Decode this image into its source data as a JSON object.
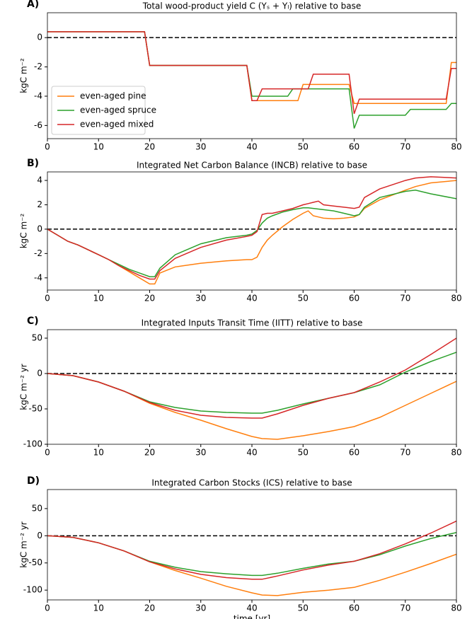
{
  "chart_data": [
    {
      "type": "line",
      "label": "A)",
      "title": "Total wood-product yield C (Yₛ + Yₗ) relative to base",
      "ylabel": "kgC m⁻²",
      "xlim": [
        0,
        80
      ],
      "xticks": [
        0,
        10,
        20,
        30,
        40,
        50,
        60,
        70,
        80
      ],
      "ylim": [
        -6.9,
        1.7
      ],
      "yticks": [
        -6,
        -4,
        -2,
        0
      ],
      "hline": 0,
      "legend": "lower left",
      "series": [
        {
          "name": "even-aged pine",
          "color": "#ff7f0e",
          "x": [
            0,
            19,
            20,
            39,
            40,
            49,
            50,
            59,
            60,
            78,
            79,
            80
          ],
          "values": [
            0.4,
            0.4,
            -1.9,
            -1.9,
            -4.3,
            -4.3,
            -3.2,
            -3.2,
            -4.5,
            -4.5,
            -1.7,
            -1.7
          ]
        },
        {
          "name": "even-aged spruce",
          "color": "#2ca02c",
          "x": [
            0,
            19,
            20,
            39,
            40,
            47,
            48,
            59,
            60,
            61,
            70,
            71,
            78,
            79,
            80
          ],
          "values": [
            0.4,
            0.4,
            -1.9,
            -1.9,
            -4.0,
            -4.0,
            -3.5,
            -3.5,
            -6.2,
            -5.3,
            -5.3,
            -4.9,
            -4.9,
            -4.5,
            -4.5
          ]
        },
        {
          "name": "even-aged mixed",
          "color": "#d62728",
          "x": [
            0,
            19,
            20,
            39,
            40,
            41,
            42,
            51,
            52,
            59,
            60,
            61,
            78,
            79,
            80
          ],
          "values": [
            0.4,
            0.4,
            -1.9,
            -1.9,
            -4.3,
            -4.3,
            -3.5,
            -3.5,
            -2.5,
            -2.5,
            -5.2,
            -4.2,
            -4.2,
            -2.1,
            -2.1
          ]
        }
      ]
    },
    {
      "type": "line",
      "label": "B)",
      "title": "Integrated Net Carbon Balance (INCB) relative to base",
      "ylabel": "kgC m⁻²",
      "xlim": [
        0,
        80
      ],
      "xticks": [
        0,
        10,
        20,
        30,
        40,
        50,
        60,
        70,
        80
      ],
      "ylim": [
        -5,
        4.7
      ],
      "yticks": [
        -4,
        -2,
        0,
        2,
        4
      ],
      "hline": 0,
      "x": [
        0,
        2,
        4,
        6,
        8,
        10,
        12,
        14,
        16,
        18,
        20,
        21,
        22,
        25,
        30,
        35,
        39,
        40,
        41,
        42,
        43,
        44,
        46,
        48,
        50,
        51,
        52,
        53,
        54,
        56,
        58,
        60,
        61,
        62,
        65,
        70,
        72,
        75,
        80
      ],
      "series": [
        {
          "color": "#ff7f0e",
          "values": [
            0,
            -0.5,
            -1.0,
            -1.3,
            -1.7,
            -2.1,
            -2.5,
            -3.0,
            -3.5,
            -4.0,
            -4.5,
            -4.5,
            -3.6,
            -3.1,
            -2.8,
            -2.6,
            -2.5,
            -2.5,
            -2.3,
            -1.5,
            -0.9,
            -0.5,
            0.2,
            0.8,
            1.3,
            1.5,
            1.1,
            1.0,
            0.9,
            0.85,
            0.9,
            1.0,
            1.2,
            1.7,
            2.4,
            3.2,
            3.5,
            3.8,
            4.0
          ]
        },
        {
          "color": "#2ca02c",
          "values": [
            0,
            -0.5,
            -1.0,
            -1.3,
            -1.7,
            -2.1,
            -2.5,
            -2.9,
            -3.3,
            -3.6,
            -3.9,
            -3.9,
            -3.2,
            -2.1,
            -1.2,
            -0.7,
            -0.5,
            -0.4,
            -0.1,
            0.5,
            0.9,
            1.1,
            1.4,
            1.6,
            1.75,
            1.75,
            1.7,
            1.65,
            1.6,
            1.5,
            1.3,
            1.1,
            1.2,
            1.8,
            2.6,
            3.1,
            3.2,
            2.9,
            2.5
          ]
        },
        {
          "color": "#d62728",
          "values": [
            0,
            -0.5,
            -1.0,
            -1.3,
            -1.7,
            -2.1,
            -2.5,
            -3.0,
            -3.4,
            -3.8,
            -4.1,
            -4.1,
            -3.4,
            -2.4,
            -1.5,
            -0.9,
            -0.6,
            -0.5,
            -0.2,
            1.2,
            1.3,
            1.3,
            1.5,
            1.7,
            2.0,
            2.1,
            2.2,
            2.3,
            2.0,
            1.9,
            1.8,
            1.7,
            1.8,
            2.6,
            3.3,
            4.0,
            4.2,
            4.3,
            4.2
          ]
        }
      ]
    },
    {
      "type": "line",
      "label": "C)",
      "title": "Integrated Inputs Transit Time (IITT) relative to base",
      "ylabel": "kgC m⁻² yr",
      "xlim": [
        0,
        80
      ],
      "xticks": [
        0,
        10,
        20,
        30,
        40,
        50,
        60,
        70,
        80
      ],
      "ylim": [
        -100,
        62
      ],
      "yticks": [
        -100,
        -50,
        0,
        50
      ],
      "hline": 0,
      "x": [
        0,
        5,
        10,
        15,
        20,
        25,
        30,
        35,
        40,
        42,
        45,
        50,
        55,
        60,
        65,
        70,
        75,
        80
      ],
      "series": [
        {
          "color": "#ff7f0e",
          "values": [
            0,
            -3,
            -12,
            -25,
            -42,
            -55,
            -66,
            -78,
            -89,
            -92,
            -93,
            -88,
            -82,
            -75,
            -62,
            -45,
            -28,
            -11
          ]
        },
        {
          "color": "#2ca02c",
          "values": [
            0,
            -3,
            -12,
            -25,
            -40,
            -48,
            -53,
            -55,
            -56,
            -56,
            -52,
            -43,
            -35,
            -27,
            -16,
            2,
            17,
            30
          ]
        },
        {
          "color": "#d62728",
          "values": [
            0,
            -3,
            -12,
            -25,
            -41,
            -52,
            -59,
            -62,
            -63,
            -63,
            -57,
            -45,
            -35,
            -27,
            -12,
            5,
            27,
            50
          ]
        }
      ]
    },
    {
      "type": "line",
      "label": "D)",
      "title": "Integrated Carbon Stocks (ICS) relative to base",
      "ylabel": "kgC m⁻² yr",
      "xlabel": "time [yr]",
      "xlim": [
        0,
        80
      ],
      "xticks": [
        0,
        10,
        20,
        30,
        40,
        50,
        60,
        70,
        80
      ],
      "ylim": [
        -118,
        85
      ],
      "yticks": [
        -100,
        -50,
        0,
        50
      ],
      "hline": 0,
      "x": [
        0,
        5,
        10,
        15,
        20,
        25,
        30,
        35,
        40,
        42,
        45,
        50,
        55,
        60,
        65,
        70,
        75,
        80
      ],
      "series": [
        {
          "color": "#ff7f0e",
          "values": [
            0,
            -3,
            -13,
            -28,
            -48,
            -64,
            -78,
            -93,
            -105,
            -109,
            -110,
            -104,
            -100,
            -95,
            -82,
            -67,
            -51,
            -34
          ]
        },
        {
          "color": "#2ca02c",
          "values": [
            0,
            -3,
            -13,
            -28,
            -47,
            -58,
            -66,
            -70,
            -73,
            -73,
            -69,
            -60,
            -52,
            -47,
            -35,
            -19,
            -5,
            6
          ]
        },
        {
          "color": "#d62728",
          "values": [
            0,
            -3,
            -13,
            -28,
            -48,
            -61,
            -71,
            -77,
            -80,
            -80,
            -74,
            -63,
            -54,
            -47,
            -33,
            -15,
            5,
            27
          ]
        }
      ]
    }
  ]
}
